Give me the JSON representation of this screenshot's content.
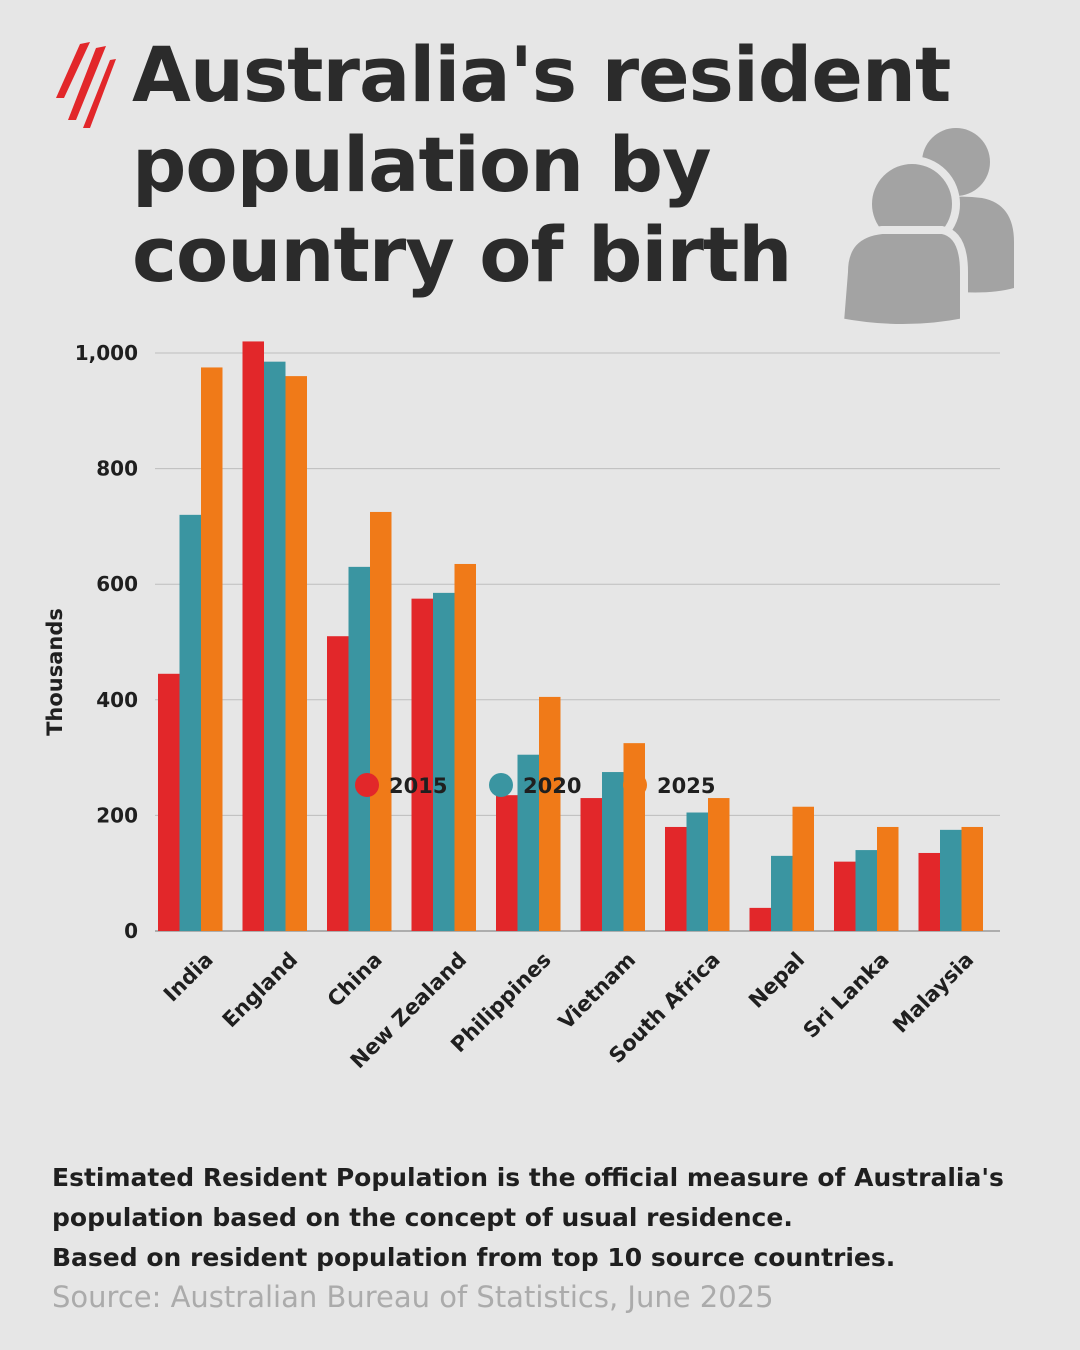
{
  "title": "Australia's resident population by country of birth",
  "brand": {
    "logo_icon": "sbs-logo-icon",
    "accent": "#e2272a"
  },
  "header_icon": "people-icon",
  "chart_data": {
    "type": "bar",
    "ylabel": "Thousands",
    "xlabel": "",
    "ylim": [
      0,
      1000
    ],
    "yticks": [
      "0",
      "200",
      "400",
      "600",
      "800",
      "1,000"
    ],
    "ytick_values": [
      0,
      200,
      400,
      600,
      800,
      1000
    ],
    "grid": true,
    "legend_position": "bottom-center",
    "categories": [
      "India",
      "England",
      "China",
      "New Zealand",
      "Philippines",
      "Vietnam",
      "South Africa",
      "Nepal",
      "Sri Lanka",
      "Malaysia"
    ],
    "series": [
      {
        "name": "2015",
        "color": "#e2272a",
        "values": [
          445,
          1020,
          510,
          575,
          235,
          230,
          180,
          40,
          120,
          135
        ]
      },
      {
        "name": "2020",
        "color": "#3a95a1",
        "values": [
          720,
          985,
          630,
          585,
          305,
          275,
          205,
          130,
          140,
          175
        ]
      },
      {
        "name": "2025",
        "color": "#f07a18",
        "values": [
          975,
          960,
          725,
          635,
          405,
          325,
          230,
          215,
          180,
          180
        ]
      }
    ]
  },
  "footnote": {
    "line1": "Estimated Resident Population is the official measure of Australia's",
    "line2": "population based on the concept of usual residence.",
    "line3": "Based on resident population from top 10 source countries."
  },
  "source": "Source: Australian Bureau of Statistics, June 2025"
}
